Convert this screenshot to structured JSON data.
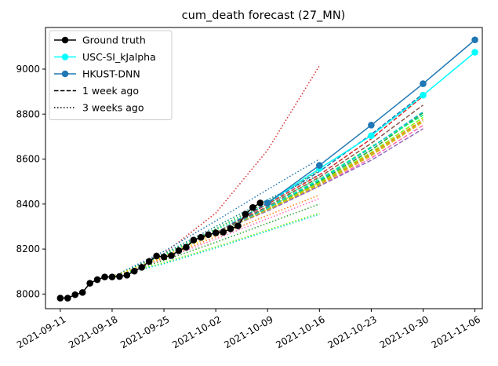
{
  "chart_data": {
    "type": "line",
    "title": "cum_death forecast (27_MN)",
    "xlabel": "",
    "ylabel": "",
    "x_axis": {
      "type": "date",
      "range": [
        "2021-09-09",
        "2021-11-07"
      ],
      "ticks": [
        "2021-09-11",
        "2021-09-18",
        "2021-09-25",
        "2021-10-02",
        "2021-10-09",
        "2021-10-16",
        "2021-10-23",
        "2021-10-30",
        "2021-11-06"
      ]
    },
    "y_axis": {
      "range": [
        7935,
        9185
      ],
      "ticks": [
        8000,
        8200,
        8400,
        8600,
        8800,
        9000
      ]
    },
    "grid": false,
    "legend": {
      "position": "top-left",
      "entries": [
        {
          "label": "Ground truth",
          "color": "#000000",
          "style": "solid-marker"
        },
        {
          "label": "USC-SI_kJalpha",
          "color": "#00ffff",
          "style": "solid-marker"
        },
        {
          "label": "HKUST-DNN",
          "color": "#1f77b4",
          "style": "solid-marker"
        },
        {
          "label": "1 week ago",
          "color": "#000000",
          "style": "dashed"
        },
        {
          "label": "3 weeks ago",
          "color": "#000000",
          "style": "dotted"
        }
      ]
    },
    "series": [
      {
        "name": "Ground truth",
        "color": "#000000",
        "style": "solid-marker",
        "points": [
          [
            "2021-09-11",
            7982
          ],
          [
            "2021-09-12",
            7982
          ],
          [
            "2021-09-13",
            7997
          ],
          [
            "2021-09-14",
            8007
          ],
          [
            "2021-09-15",
            8048
          ],
          [
            "2021-09-16",
            8064
          ],
          [
            "2021-09-17",
            8076
          ],
          [
            "2021-09-18",
            8076
          ],
          [
            "2021-09-19",
            8078
          ],
          [
            "2021-09-20",
            8084
          ],
          [
            "2021-09-21",
            8102
          ],
          [
            "2021-09-22",
            8119
          ],
          [
            "2021-09-23",
            8145
          ],
          [
            "2021-09-24",
            8169
          ],
          [
            "2021-09-25",
            8165
          ],
          [
            "2021-09-26",
            8171
          ],
          [
            "2021-09-27",
            8193
          ],
          [
            "2021-09-28",
            8208
          ],
          [
            "2021-09-29",
            8240
          ],
          [
            "2021-09-30",
            8252
          ],
          [
            "2021-10-01",
            8264
          ],
          [
            "2021-10-02",
            8272
          ],
          [
            "2021-10-03",
            8275
          ],
          [
            "2021-10-04",
            8290
          ],
          [
            "2021-10-05",
            8303
          ],
          [
            "2021-10-06",
            8355
          ],
          [
            "2021-10-07",
            8385
          ],
          [
            "2021-10-08",
            8405
          ]
        ]
      },
      {
        "name": "USC-SI_kJalpha",
        "color": "#00ffff",
        "style": "solid-marker",
        "points": [
          [
            "2021-10-09",
            8405
          ],
          [
            "2021-10-16",
            8558
          ],
          [
            "2021-10-23",
            8704
          ],
          [
            "2021-10-30",
            8884
          ],
          [
            "2021-11-06",
            9075
          ]
        ]
      },
      {
        "name": "HKUST-DNN",
        "color": "#1f77b4",
        "style": "solid-marker",
        "points": [
          [
            "2021-10-09",
            8405
          ],
          [
            "2021-10-16",
            8572
          ],
          [
            "2021-10-23",
            8751
          ],
          [
            "2021-10-30",
            8935
          ],
          [
            "2021-11-06",
            9130
          ]
        ]
      }
    ],
    "forecasts_1_week_ago": [
      {
        "color": "#d62728",
        "points": [
          [
            "2021-10-02",
            8272
          ],
          [
            "2021-10-09",
            8400
          ],
          [
            "2021-10-16",
            8530
          ],
          [
            "2021-10-23",
            8690
          ],
          [
            "2021-10-30",
            8880
          ]
        ]
      },
      {
        "color": "#1f77b4",
        "points": [
          [
            "2021-10-02",
            8272
          ],
          [
            "2021-10-09",
            8405
          ],
          [
            "2021-10-16",
            8545
          ],
          [
            "2021-10-23",
            8710
          ],
          [
            "2021-10-30",
            8890
          ]
        ]
      },
      {
        "color": "#2ca02c",
        "points": [
          [
            "2021-10-02",
            8272
          ],
          [
            "2021-10-09",
            8380
          ],
          [
            "2021-10-16",
            8500
          ],
          [
            "2021-10-23",
            8640
          ],
          [
            "2021-10-30",
            8805
          ]
        ]
      },
      {
        "color": "#00ff7f",
        "points": [
          [
            "2021-10-02",
            8272
          ],
          [
            "2021-10-09",
            8385
          ],
          [
            "2021-10-16",
            8510
          ],
          [
            "2021-10-23",
            8655
          ],
          [
            "2021-10-30",
            8795
          ]
        ]
      },
      {
        "color": "#7fff00",
        "points": [
          [
            "2021-10-02",
            8272
          ],
          [
            "2021-10-09",
            8378
          ],
          [
            "2021-10-16",
            8495
          ],
          [
            "2021-10-23",
            8630
          ],
          [
            "2021-10-30",
            8785
          ]
        ]
      },
      {
        "color": "#e7b416",
        "points": [
          [
            "2021-10-02",
            8272
          ],
          [
            "2021-10-09",
            8372
          ],
          [
            "2021-10-16",
            8485
          ],
          [
            "2021-10-23",
            8615
          ],
          [
            "2021-10-30",
            8765
          ]
        ]
      },
      {
        "color": "#ff7f0e",
        "points": [
          [
            "2021-10-02",
            8272
          ],
          [
            "2021-10-09",
            8375
          ],
          [
            "2021-10-16",
            8490
          ],
          [
            "2021-10-23",
            8625
          ],
          [
            "2021-10-30",
            8775
          ]
        ]
      },
      {
        "color": "#ff69b4",
        "points": [
          [
            "2021-10-02",
            8272
          ],
          [
            "2021-10-09",
            8370
          ],
          [
            "2021-10-16",
            8480
          ],
          [
            "2021-10-23",
            8605
          ],
          [
            "2021-10-30",
            8750
          ]
        ]
      },
      {
        "color": "#9467bd",
        "points": [
          [
            "2021-10-02",
            8272
          ],
          [
            "2021-10-09",
            8370
          ],
          [
            "2021-10-16",
            8480
          ],
          [
            "2021-10-23",
            8595
          ],
          [
            "2021-10-30",
            8735
          ]
        ]
      },
      {
        "color": "#bcbd22",
        "points": [
          [
            "2021-10-02",
            8272
          ],
          [
            "2021-10-09",
            8374
          ],
          [
            "2021-10-16",
            8488
          ],
          [
            "2021-10-23",
            8620
          ],
          [
            "2021-10-30",
            8770
          ]
        ]
      },
      {
        "color": "#17becf",
        "points": [
          [
            "2021-10-02",
            8272
          ],
          [
            "2021-10-09",
            8382
          ],
          [
            "2021-10-16",
            8505
          ],
          [
            "2021-10-23",
            8650
          ],
          [
            "2021-10-30",
            8810
          ]
        ]
      },
      {
        "color": "#8c564b",
        "points": [
          [
            "2021-10-02",
            8272
          ],
          [
            "2021-10-09",
            8390
          ],
          [
            "2021-10-16",
            8520
          ],
          [
            "2021-10-23",
            8670
          ],
          [
            "2021-10-30",
            8840
          ]
        ]
      }
    ],
    "forecasts_3_weeks_ago": [
      {
        "color": "#d62728",
        "points": [
          [
            "2021-09-18",
            8076
          ],
          [
            "2021-09-25",
            8180
          ],
          [
            "2021-10-02",
            8360
          ],
          [
            "2021-10-09",
            8640
          ],
          [
            "2021-10-16",
            9015
          ]
        ]
      },
      {
        "color": "#1f77b4",
        "points": [
          [
            "2021-09-18",
            8076
          ],
          [
            "2021-09-25",
            8190
          ],
          [
            "2021-10-02",
            8325
          ],
          [
            "2021-10-09",
            8465
          ],
          [
            "2021-10-16",
            8600
          ]
        ]
      },
      {
        "color": "#008b8b",
        "points": [
          [
            "2021-09-18",
            8076
          ],
          [
            "2021-09-25",
            8180
          ],
          [
            "2021-10-02",
            8300
          ],
          [
            "2021-10-09",
            8420
          ],
          [
            "2021-10-16",
            8530
          ]
        ]
      },
      {
        "color": "#2ca02c",
        "points": [
          [
            "2021-09-18",
            8076
          ],
          [
            "2021-09-25",
            8175
          ],
          [
            "2021-10-02",
            8290
          ],
          [
            "2021-10-09",
            8410
          ],
          [
            "2021-10-16",
            8550
          ]
        ]
      },
      {
        "color": "#00ff7f",
        "points": [
          [
            "2021-09-18",
            8076
          ],
          [
            "2021-09-25",
            8172
          ],
          [
            "2021-10-02",
            8285
          ],
          [
            "2021-10-09",
            8400
          ],
          [
            "2021-10-16",
            8515
          ]
        ]
      },
      {
        "color": "#e7b416",
        "points": [
          [
            "2021-09-18",
            8076
          ],
          [
            "2021-09-25",
            8168
          ],
          [
            "2021-10-02",
            8275
          ],
          [
            "2021-10-09",
            8385
          ],
          [
            "2021-10-16",
            8495
          ]
        ]
      },
      {
        "color": "#ff7f0e",
        "points": [
          [
            "2021-09-18",
            8076
          ],
          [
            "2021-09-25",
            8160
          ],
          [
            "2021-10-02",
            8255
          ],
          [
            "2021-10-09",
            8350
          ],
          [
            "2021-10-16",
            8440
          ]
        ]
      },
      {
        "color": "#ff69b4",
        "points": [
          [
            "2021-09-18",
            8076
          ],
          [
            "2021-09-25",
            8155
          ],
          [
            "2021-10-02",
            8245
          ],
          [
            "2021-10-09",
            8335
          ],
          [
            "2021-10-16",
            8425
          ]
        ]
      },
      {
        "color": "#7fff00",
        "points": [
          [
            "2021-09-18",
            8076
          ],
          [
            "2021-09-25",
            8140
          ],
          [
            "2021-10-02",
            8210
          ],
          [
            "2021-10-09",
            8285
          ],
          [
            "2021-10-16",
            8360
          ]
        ]
      },
      {
        "color": "#2ca02c",
        "points": [
          [
            "2021-09-18",
            8076
          ],
          [
            "2021-09-25",
            8150
          ],
          [
            "2021-10-02",
            8230
          ],
          [
            "2021-10-09",
            8315
          ],
          [
            "2021-10-16",
            8400
          ]
        ]
      },
      {
        "color": "#00ced1",
        "points": [
          [
            "2021-09-18",
            8076
          ],
          [
            "2021-09-25",
            8135
          ],
          [
            "2021-10-02",
            8205
          ],
          [
            "2021-10-09",
            8280
          ],
          [
            "2021-10-16",
            8355
          ]
        ]
      },
      {
        "color": "#ffd700",
        "points": [
          [
            "2021-09-18",
            8076
          ],
          [
            "2021-09-25",
            8165
          ],
          [
            "2021-10-02",
            8265
          ],
          [
            "2021-10-09",
            8375
          ],
          [
            "2021-10-16",
            8480
          ]
        ]
      }
    ]
  }
}
